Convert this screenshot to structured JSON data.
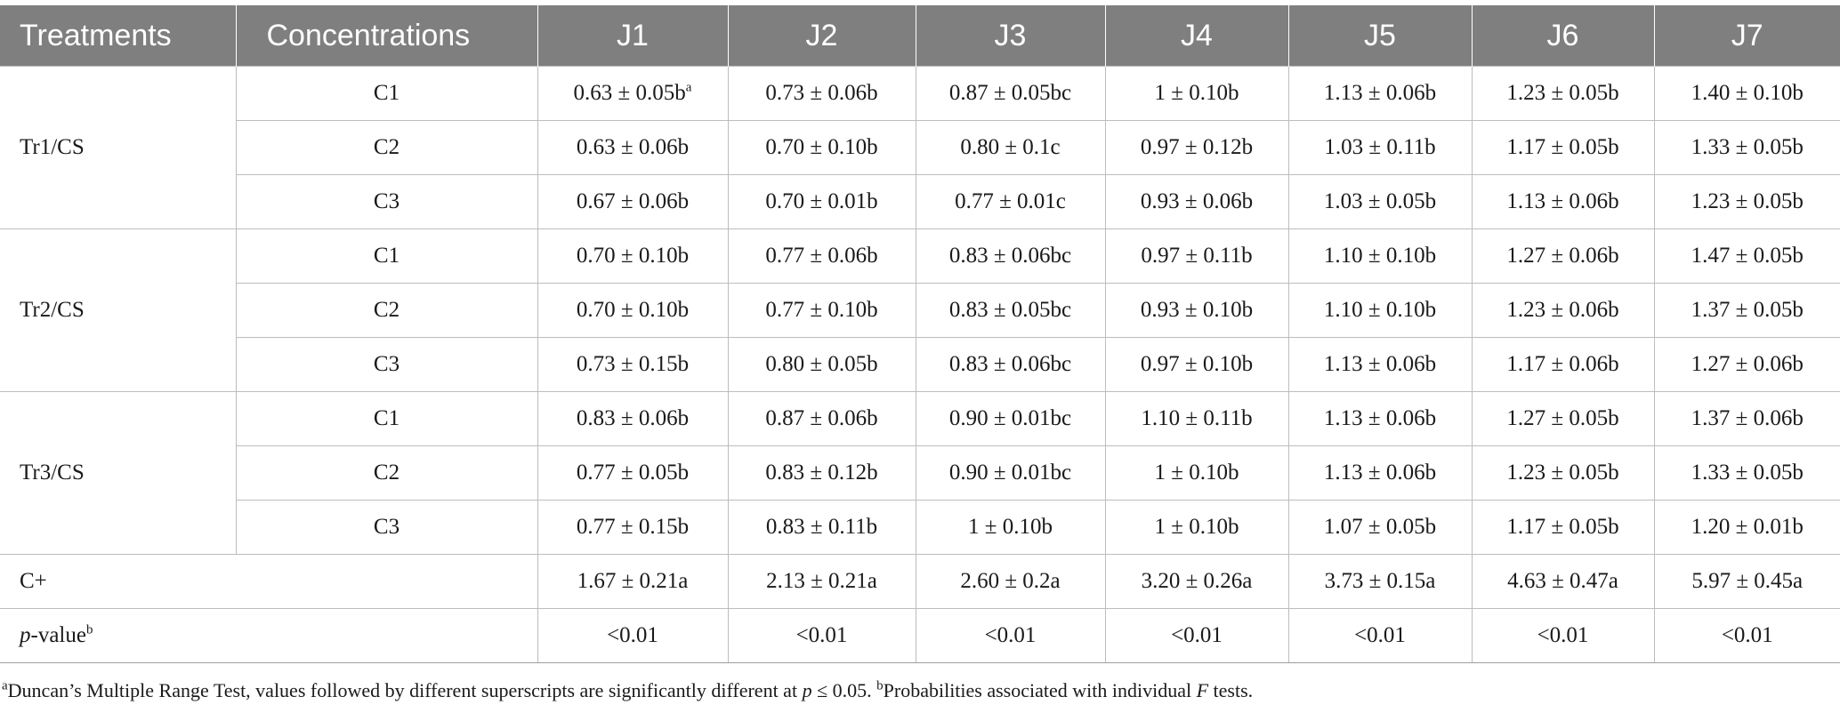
{
  "header": [
    "Treatments",
    "Concentrations",
    "J1",
    "J2",
    "J3",
    "J4",
    "J5",
    "J6",
    "J7"
  ],
  "groups": [
    {
      "name": "Tr1/CS",
      "rows": [
        {
          "conc": "C1",
          "values": [
            "0.63 ± 0.05b",
            "0.73 ± 0.06b",
            "0.87 ± 0.05bc",
            "1 ± 0.10b",
            "1.13 ± 0.06b",
            "1.23 ± 0.05b",
            "1.40 ± 0.10b"
          ]
        },
        {
          "conc": "C2",
          "values": [
            "0.63 ± 0.06b",
            "0.70 ± 0.10b",
            "0.80 ± 0.1c",
            "0.97 ± 0.12b",
            "1.03 ± 0.11b",
            "1.17 ± 0.05b",
            "1.33 ± 0.05b"
          ]
        },
        {
          "conc": "C3",
          "values": [
            "0.67 ± 0.06b",
            "0.70 ± 0.01b",
            "0.77 ± 0.01c",
            "0.93 ± 0.06b",
            "1.03 ± 0.05b",
            "1.13 ± 0.06b",
            "1.23 ± 0.05b"
          ]
        }
      ]
    },
    {
      "name": "Tr2/CS",
      "rows": [
        {
          "conc": "C1",
          "values": [
            "0.70 ± 0.10b",
            "0.77 ± 0.06b",
            "0.83 ± 0.06bc",
            "0.97 ± 0.11b",
            "1.10 ± 0.10b",
            "1.27 ± 0.06b",
            "1.47 ± 0.05b"
          ]
        },
        {
          "conc": "C2",
          "values": [
            "0.70 ± 0.10b",
            "0.77 ± 0.10b",
            "0.83 ± 0.05bc",
            "0.93 ± 0.10b",
            "1.10 ± 0.10b",
            "1.23 ± 0.06b",
            "1.37 ± 0.05b"
          ]
        },
        {
          "conc": "C3",
          "values": [
            "0.73 ± 0.15b",
            "0.80 ± 0.05b",
            "0.83 ± 0.06bc",
            "0.97 ± 0.10b",
            "1.13 ± 0.06b",
            "1.17 ± 0.06b",
            "1.27 ± 0.06b"
          ]
        }
      ]
    },
    {
      "name": "Tr3/CS",
      "rows": [
        {
          "conc": "C1",
          "values": [
            "0.83 ± 0.06b",
            "0.87 ± 0.06b",
            "0.90 ± 0.01bc",
            "1.10 ± 0.11b",
            "1.13 ± 0.06b",
            "1.27 ± 0.05b",
            "1.37 ± 0.06b"
          ]
        },
        {
          "conc": "C2",
          "values": [
            "0.77 ± 0.05b",
            "0.83 ± 0.12b",
            "0.90 ± 0.01bc",
            "1 ± 0.10b",
            "1.13 ± 0.06b",
            "1.23 ± 0.05b",
            "1.33 ± 0.05b"
          ]
        },
        {
          "conc": "C3",
          "values": [
            "0.77 ± 0.15b",
            "0.83 ± 0.11b",
            "1 ± 0.10b",
            "1 ± 0.10b",
            "1.07 ± 0.05b",
            "1.17 ± 0.05b",
            "1.20 ± 0.01b"
          ]
        }
      ]
    }
  ],
  "first_cell_sup": "a",
  "control": {
    "label": "C+",
    "values": [
      "1.67 ± 0.21a",
      "2.13 ± 0.21a",
      "2.60 ± 0.2a",
      "3.20 ± 0.26a",
      "3.73 ± 0.15a",
      "4.63 ± 0.47a",
      "5.97 ± 0.45a"
    ]
  },
  "pvalue": {
    "label_italic": "p",
    "label_rest": "-value",
    "label_sup": "b",
    "values": [
      "<0.01",
      "<0.01",
      "<0.01",
      "<0.01",
      "<0.01",
      "<0.01",
      "<0.01"
    ]
  },
  "footnote": {
    "a_sup": "a",
    "a_text": "Duncan’s Multiple Range Test, values followed by different superscripts are significantly different at ",
    "a_p": "p",
    "a_tail": " ≤ 0.05. ",
    "b_sup": "b",
    "b_text": "Probabilities associated with individual ",
    "b_f": "F",
    "b_tail": " tests."
  },
  "colors": {
    "header_bg": "#7f7f7f",
    "header_text": "#ffffff",
    "grid": "#bdbdbd"
  }
}
